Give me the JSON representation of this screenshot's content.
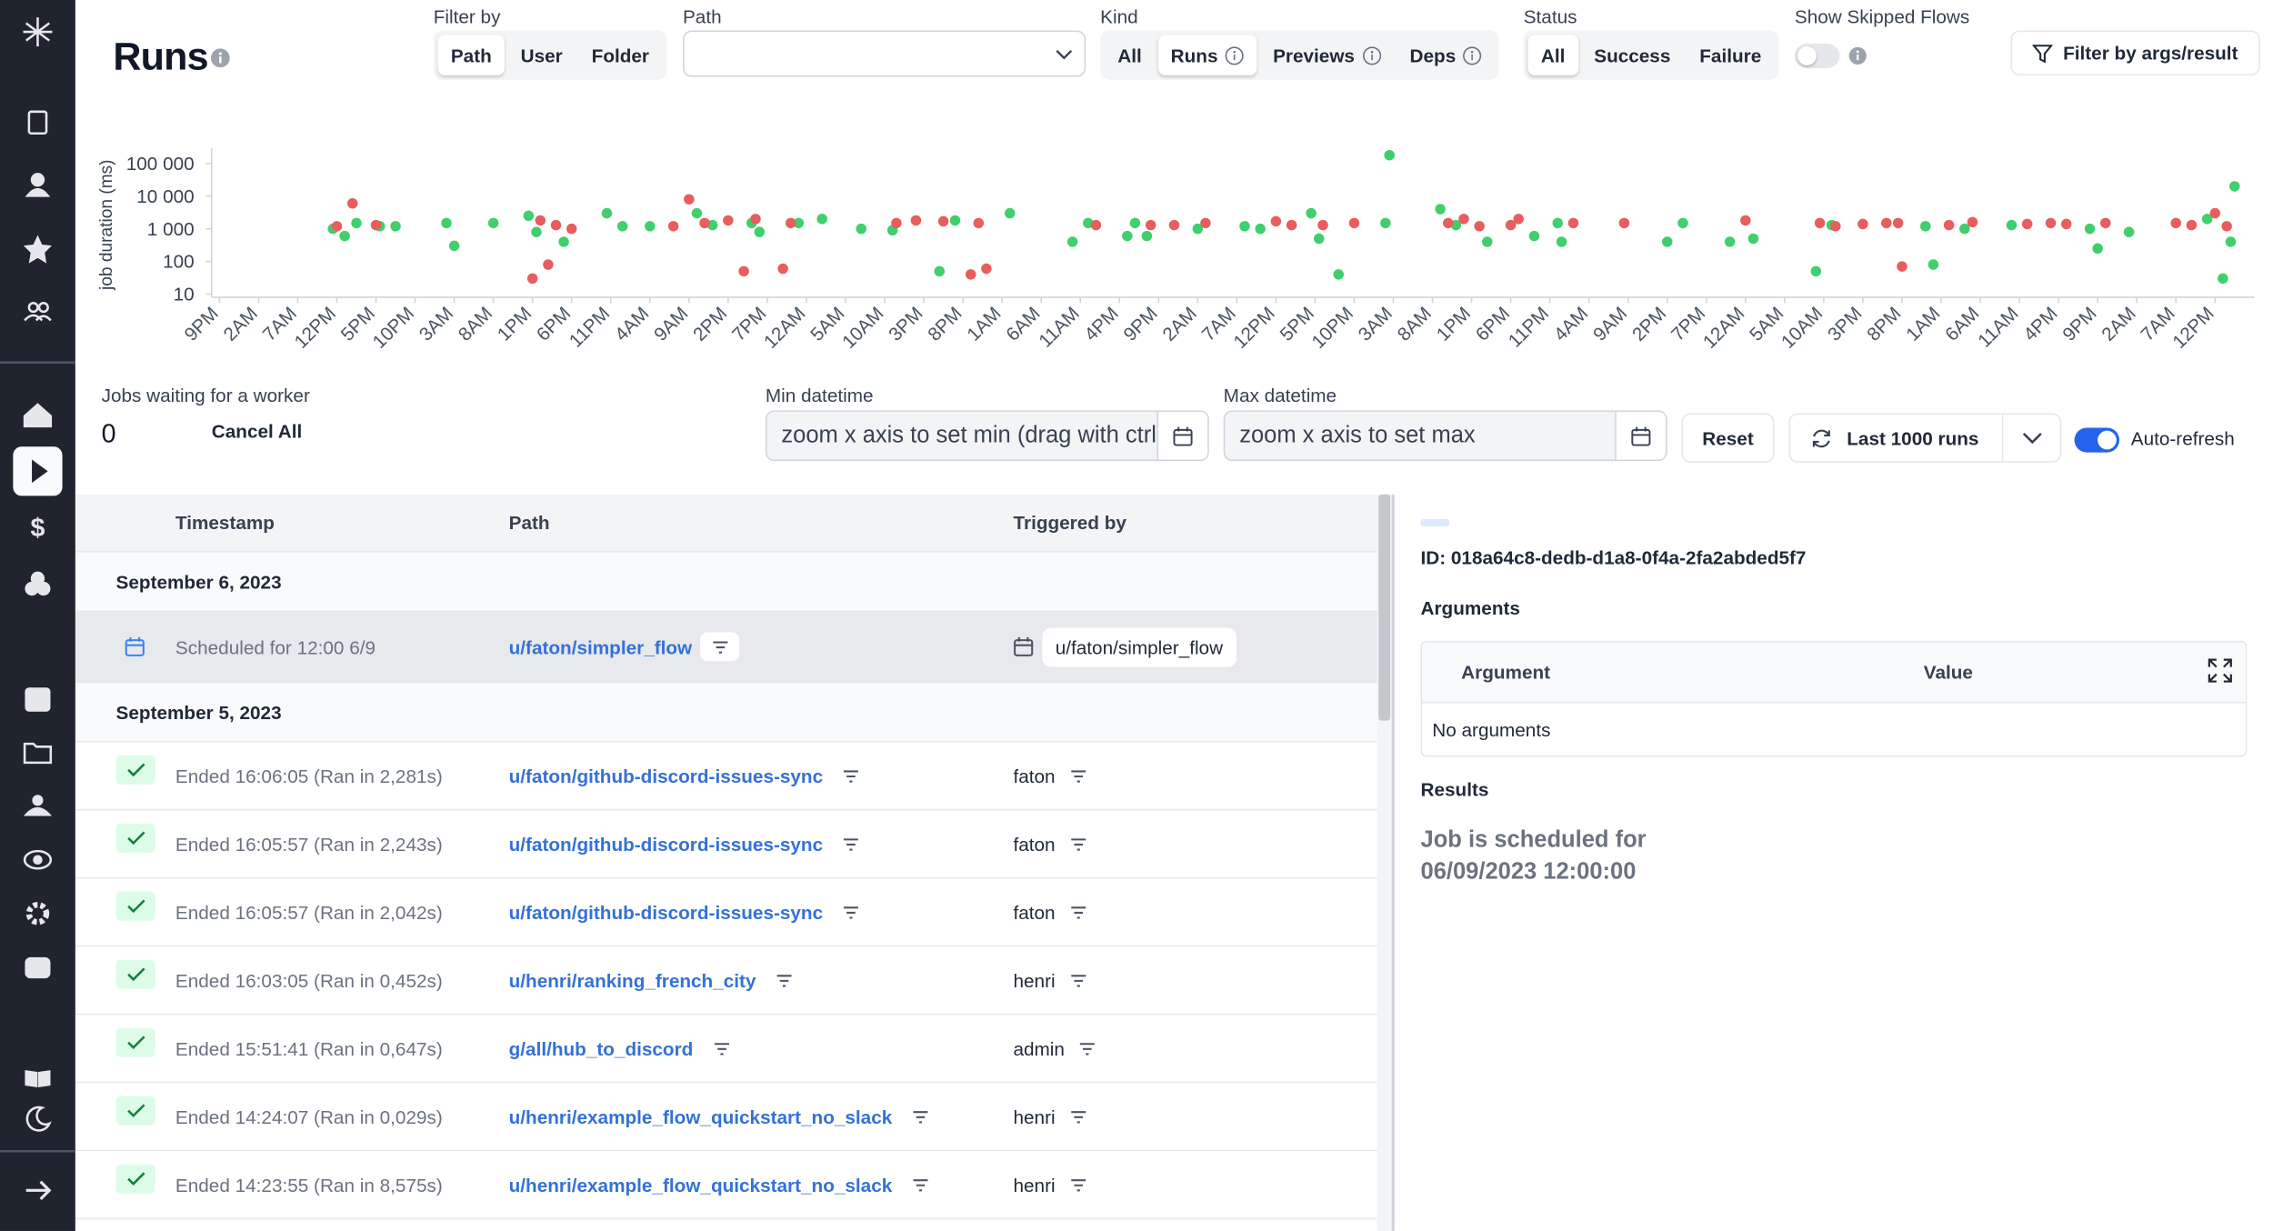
{
  "header": {
    "title": "Runs"
  },
  "filters": {
    "filter_by": {
      "label": "Filter by",
      "options": [
        "Path",
        "User",
        "Folder"
      ],
      "active": 0
    },
    "path": {
      "label": "Path"
    },
    "kind": {
      "label": "Kind",
      "options": [
        "All",
        "Runs",
        "Previews",
        "Deps"
      ],
      "active": 1
    },
    "status": {
      "label": "Status",
      "options": [
        "All",
        "Success",
        "Failure"
      ],
      "active": 0
    },
    "show_skipped": {
      "label": "Show Skipped Flows",
      "on": false
    },
    "args_button": "Filter by args/result"
  },
  "chart_data": {
    "type": "scatter",
    "y_label": "job duration (ms)",
    "log_y": true,
    "xlim": [
      -1,
      260
    ],
    "ylim": [
      8,
      200000
    ],
    "xticks": [
      {
        "value": 0,
        "label": "9PM"
      },
      {
        "value": 5,
        "label": "2AM"
      },
      {
        "value": 10,
        "label": "7AM"
      },
      {
        "value": 15,
        "label": "12PM"
      },
      {
        "value": 20,
        "label": "5PM"
      },
      {
        "value": 25,
        "label": "10PM"
      },
      {
        "value": 30,
        "label": "3AM"
      },
      {
        "value": 35,
        "label": "8AM"
      },
      {
        "value": 40,
        "label": "1PM"
      },
      {
        "value": 45,
        "label": "6PM"
      },
      {
        "value": 50,
        "label": "11PM"
      },
      {
        "value": 55,
        "label": "4AM"
      },
      {
        "value": 60,
        "label": "9AM"
      },
      {
        "value": 65,
        "label": "2PM"
      },
      {
        "value": 70,
        "label": "7PM"
      },
      {
        "value": 75,
        "label": "12AM"
      },
      {
        "value": 80,
        "label": "5AM"
      },
      {
        "value": 85,
        "label": "10AM"
      },
      {
        "value": 90,
        "label": "3PM"
      },
      {
        "value": 95,
        "label": "8PM"
      },
      {
        "value": 100,
        "label": "1AM"
      },
      {
        "value": 105,
        "label": "6AM"
      },
      {
        "value": 110,
        "label": "11AM"
      },
      {
        "value": 115,
        "label": "4PM"
      },
      {
        "value": 120,
        "label": "9PM"
      },
      {
        "value": 125,
        "label": "2AM"
      },
      {
        "value": 130,
        "label": "7AM"
      },
      {
        "value": 135,
        "label": "12PM"
      },
      {
        "value": 140,
        "label": "5PM"
      },
      {
        "value": 145,
        "label": "10PM"
      },
      {
        "value": 150,
        "label": "3AM"
      },
      {
        "value": 155,
        "label": "8AM"
      },
      {
        "value": 160,
        "label": "1PM"
      },
      {
        "value": 165,
        "label": "6PM"
      },
      {
        "value": 170,
        "label": "11PM"
      },
      {
        "value": 175,
        "label": "4AM"
      },
      {
        "value": 180,
        "label": "9AM"
      },
      {
        "value": 185,
        "label": "2PM"
      },
      {
        "value": 190,
        "label": "7PM"
      },
      {
        "value": 195,
        "label": "12AM"
      },
      {
        "value": 200,
        "label": "5AM"
      },
      {
        "value": 205,
        "label": "10AM"
      },
      {
        "value": 210,
        "label": "3PM"
      },
      {
        "value": 215,
        "label": "8PM"
      },
      {
        "value": 220,
        "label": "1AM"
      },
      {
        "value": 225,
        "label": "6AM"
      },
      {
        "value": 230,
        "label": "11AM"
      },
      {
        "value": 235,
        "label": "4PM"
      },
      {
        "value": 240,
        "label": "9PM"
      },
      {
        "value": 245,
        "label": "2AM"
      },
      {
        "value": 250,
        "label": "7AM"
      },
      {
        "value": 255,
        "label": "12PM"
      }
    ],
    "yticks": [
      10,
      100,
      {
        "value": 1000,
        "label": "1 000"
      },
      {
        "value": 10000,
        "label": "10 000"
      },
      {
        "value": 100000,
        "label": "100 000"
      }
    ],
    "series": [
      {
        "color": "#3fcf6c",
        "x": [
          14.5,
          16,
          17.5,
          20.5,
          22.5,
          29,
          30,
          35,
          39.5,
          40.5,
          44,
          49.5,
          51.5,
          55,
          61,
          63,
          68,
          69,
          74,
          77,
          82,
          86,
          92,
          94,
          101,
          109,
          111,
          116,
          117,
          118.5,
          125,
          131,
          133,
          139.5,
          140.5,
          143,
          149,
          149.5,
          156,
          158,
          162,
          168,
          171,
          171.5,
          185,
          187,
          193,
          196,
          204,
          206,
          218,
          219,
          223,
          229,
          239,
          240,
          244,
          254,
          256,
          257,
          257.5
        ],
        "values": [
          1000,
          600,
          1500,
          1200,
          1200,
          1500,
          300,
          1500,
          2500,
          800,
          400,
          3000,
          1200,
          1200,
          3000,
          1300,
          1500,
          800,
          1500,
          2000,
          1000,
          900,
          50,
          1800,
          3000,
          400,
          1500,
          600,
          1500,
          600,
          1000,
          1200,
          1000,
          3000,
          500,
          40,
          1500,
          180000,
          4000,
          1300,
          400,
          600,
          1500,
          400,
          400,
          1500,
          400,
          500,
          50,
          1300,
          1200,
          80,
          1000,
          1300,
          1000,
          250,
          800,
          2000,
          30,
          400,
          20000
        ]
      },
      {
        "color": "#e85d5d",
        "x": [
          15,
          17,
          20,
          40,
          41,
          42,
          43,
          45,
          58,
          60,
          62,
          65,
          67,
          68.5,
          72,
          73,
          86.5,
          89,
          92.5,
          96,
          97,
          98,
          112,
          119,
          122,
          126,
          135,
          137,
          141,
          145,
          157,
          159,
          161,
          165,
          166,
          173,
          179.5,
          195,
          204.5,
          206.5,
          210,
          213,
          214.5,
          215,
          221,
          224,
          231,
          234,
          236,
          241,
          250,
          252,
          255,
          256.5
        ],
        "values": [
          1200,
          6000,
          1300,
          30,
          1800,
          80,
          1300,
          1000,
          1200,
          8000,
          1500,
          1800,
          50,
          2000,
          60,
          1500,
          1500,
          1800,
          1700,
          40,
          1500,
          60,
          1300,
          1300,
          1300,
          1500,
          1700,
          1300,
          1300,
          1500,
          1500,
          2000,
          1200,
          1300,
          2000,
          1500,
          1500,
          1800,
          1500,
          1200,
          1400,
          1500,
          1500,
          70,
          1300,
          1600,
          1400,
          1500,
          1400,
          1500,
          1500,
          1300,
          3000,
          1200
        ]
      }
    ]
  },
  "queue": {
    "label": "Jobs waiting for a worker",
    "count": 0,
    "cancel": "Cancel All"
  },
  "range": {
    "min_label": "Min datetime",
    "min_placeholder": "zoom x axis to set min (drag with ctrl)",
    "max_label": "Max datetime",
    "max_placeholder": "zoom x axis to set max",
    "reset": "Reset",
    "runs_button": "Last 1000 runs",
    "auto_refresh": "Auto-refresh",
    "auto_refresh_on": true
  },
  "table": {
    "columns": [
      "Timestamp",
      "Path",
      "Triggered by"
    ],
    "groups": [
      {
        "date": "September 6, 2023",
        "rows": [
          {
            "status": "scheduled",
            "timestamp": "Scheduled for 12:00 6/9",
            "path": "u/faton/simpler_flow",
            "triggered_by": "u/faton/simpler_flow"
          }
        ]
      },
      {
        "date": "September 5, 2023",
        "rows": [
          {
            "status": "success",
            "timestamp": "Ended 16:06:05 (Ran in 2,281s)",
            "path": "u/faton/github-discord-issues-sync",
            "triggered_by": "faton"
          },
          {
            "status": "success",
            "timestamp": "Ended 16:05:57 (Ran in 2,243s)",
            "path": "u/faton/github-discord-issues-sync",
            "triggered_by": "faton"
          },
          {
            "status": "success",
            "timestamp": "Ended 16:05:57 (Ran in 2,042s)",
            "path": "u/faton/github-discord-issues-sync",
            "triggered_by": "faton"
          },
          {
            "status": "success",
            "timestamp": "Ended 16:03:05 (Ran in 0,452s)",
            "path": "u/henri/ranking_french_city",
            "triggered_by": "henri"
          },
          {
            "status": "success",
            "timestamp": "Ended 15:51:41 (Ran in 0,647s)",
            "path": "g/all/hub_to_discord",
            "triggered_by": "admin"
          },
          {
            "status": "success",
            "timestamp": "Ended 14:24:07 (Ran in 0,029s)",
            "path": "u/henri/example_flow_quickstart_no_slack",
            "triggered_by": "henri"
          },
          {
            "status": "success",
            "timestamp": "Ended 14:23:55 (Ran in 8,575s)",
            "path": "u/henri/example_flow_quickstart_no_slack",
            "triggered_by": "henri"
          }
        ]
      }
    ]
  },
  "detail": {
    "id": "ID: 018a64c8-dedb-d1a8-0f4a-2fa2abded5f7",
    "arguments_title": "Arguments",
    "columns": [
      "Argument",
      "Value"
    ],
    "empty": "No arguments",
    "results_title": "Results",
    "result": "Job is scheduled for 06/09/2023 12:00:00"
  }
}
